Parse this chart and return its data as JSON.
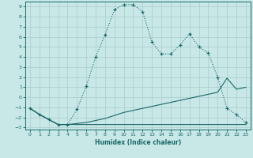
{
  "xlabel": "Humidex (Indice chaleur)",
  "bg_color": "#c8e8e8",
  "grid_color": "#b0d0d0",
  "line_color": "#1a6666",
  "xlim": [
    -0.5,
    23.5
  ],
  "ylim": [
    -3.2,
    9.5
  ],
  "xticks": [
    0,
    1,
    2,
    3,
    4,
    5,
    6,
    7,
    8,
    9,
    10,
    11,
    12,
    13,
    14,
    15,
    16,
    17,
    18,
    19,
    20,
    21,
    22,
    23
  ],
  "yticks": [
    -3,
    -2,
    -1,
    0,
    1,
    2,
    3,
    4,
    5,
    6,
    7,
    8,
    9
  ],
  "line1_x": [
    0,
    1,
    2,
    3,
    4,
    5,
    6,
    7,
    8,
    9,
    10,
    11,
    12,
    13,
    14,
    15,
    16,
    17,
    18,
    19,
    20,
    21,
    22,
    23
  ],
  "line1_y": [
    -1.1,
    -1.7,
    -2.2,
    -2.7,
    -2.7,
    -1.2,
    1.1,
    4.0,
    6.2,
    8.7,
    9.2,
    9.2,
    8.5,
    5.5,
    4.3,
    4.3,
    5.2,
    6.3,
    5.0,
    4.4,
    2.0,
    -1.1,
    -1.7,
    -2.5
  ],
  "line2_x": [
    0,
    1,
    2,
    3,
    4,
    5,
    6,
    7,
    8,
    9,
    10,
    11,
    12,
    13,
    14,
    15,
    16,
    17,
    18,
    19,
    20,
    21,
    22,
    23
  ],
  "line2_y": [
    -1.1,
    -1.7,
    -2.2,
    -2.7,
    -2.7,
    -2.6,
    -2.5,
    -2.3,
    -2.1,
    -1.8,
    -1.5,
    -1.3,
    -1.1,
    -0.9,
    -0.7,
    -0.5,
    -0.3,
    -0.1,
    0.1,
    0.3,
    0.5,
    1.9,
    0.8,
    1.0
  ],
  "line3_x": [
    0,
    1,
    2,
    3,
    4,
    5,
    6,
    7,
    8,
    9,
    10,
    11,
    12,
    13,
    14,
    15,
    16,
    17,
    18,
    19,
    20,
    21,
    22,
    23
  ],
  "line3_y": [
    -1.1,
    -1.7,
    -2.2,
    -2.7,
    -2.7,
    -2.7,
    -2.7,
    -2.7,
    -2.7,
    -2.7,
    -2.7,
    -2.7,
    -2.7,
    -2.7,
    -2.7,
    -2.7,
    -2.7,
    -2.7,
    -2.7,
    -2.7,
    -2.7,
    -2.7,
    -2.7,
    -2.7
  ]
}
